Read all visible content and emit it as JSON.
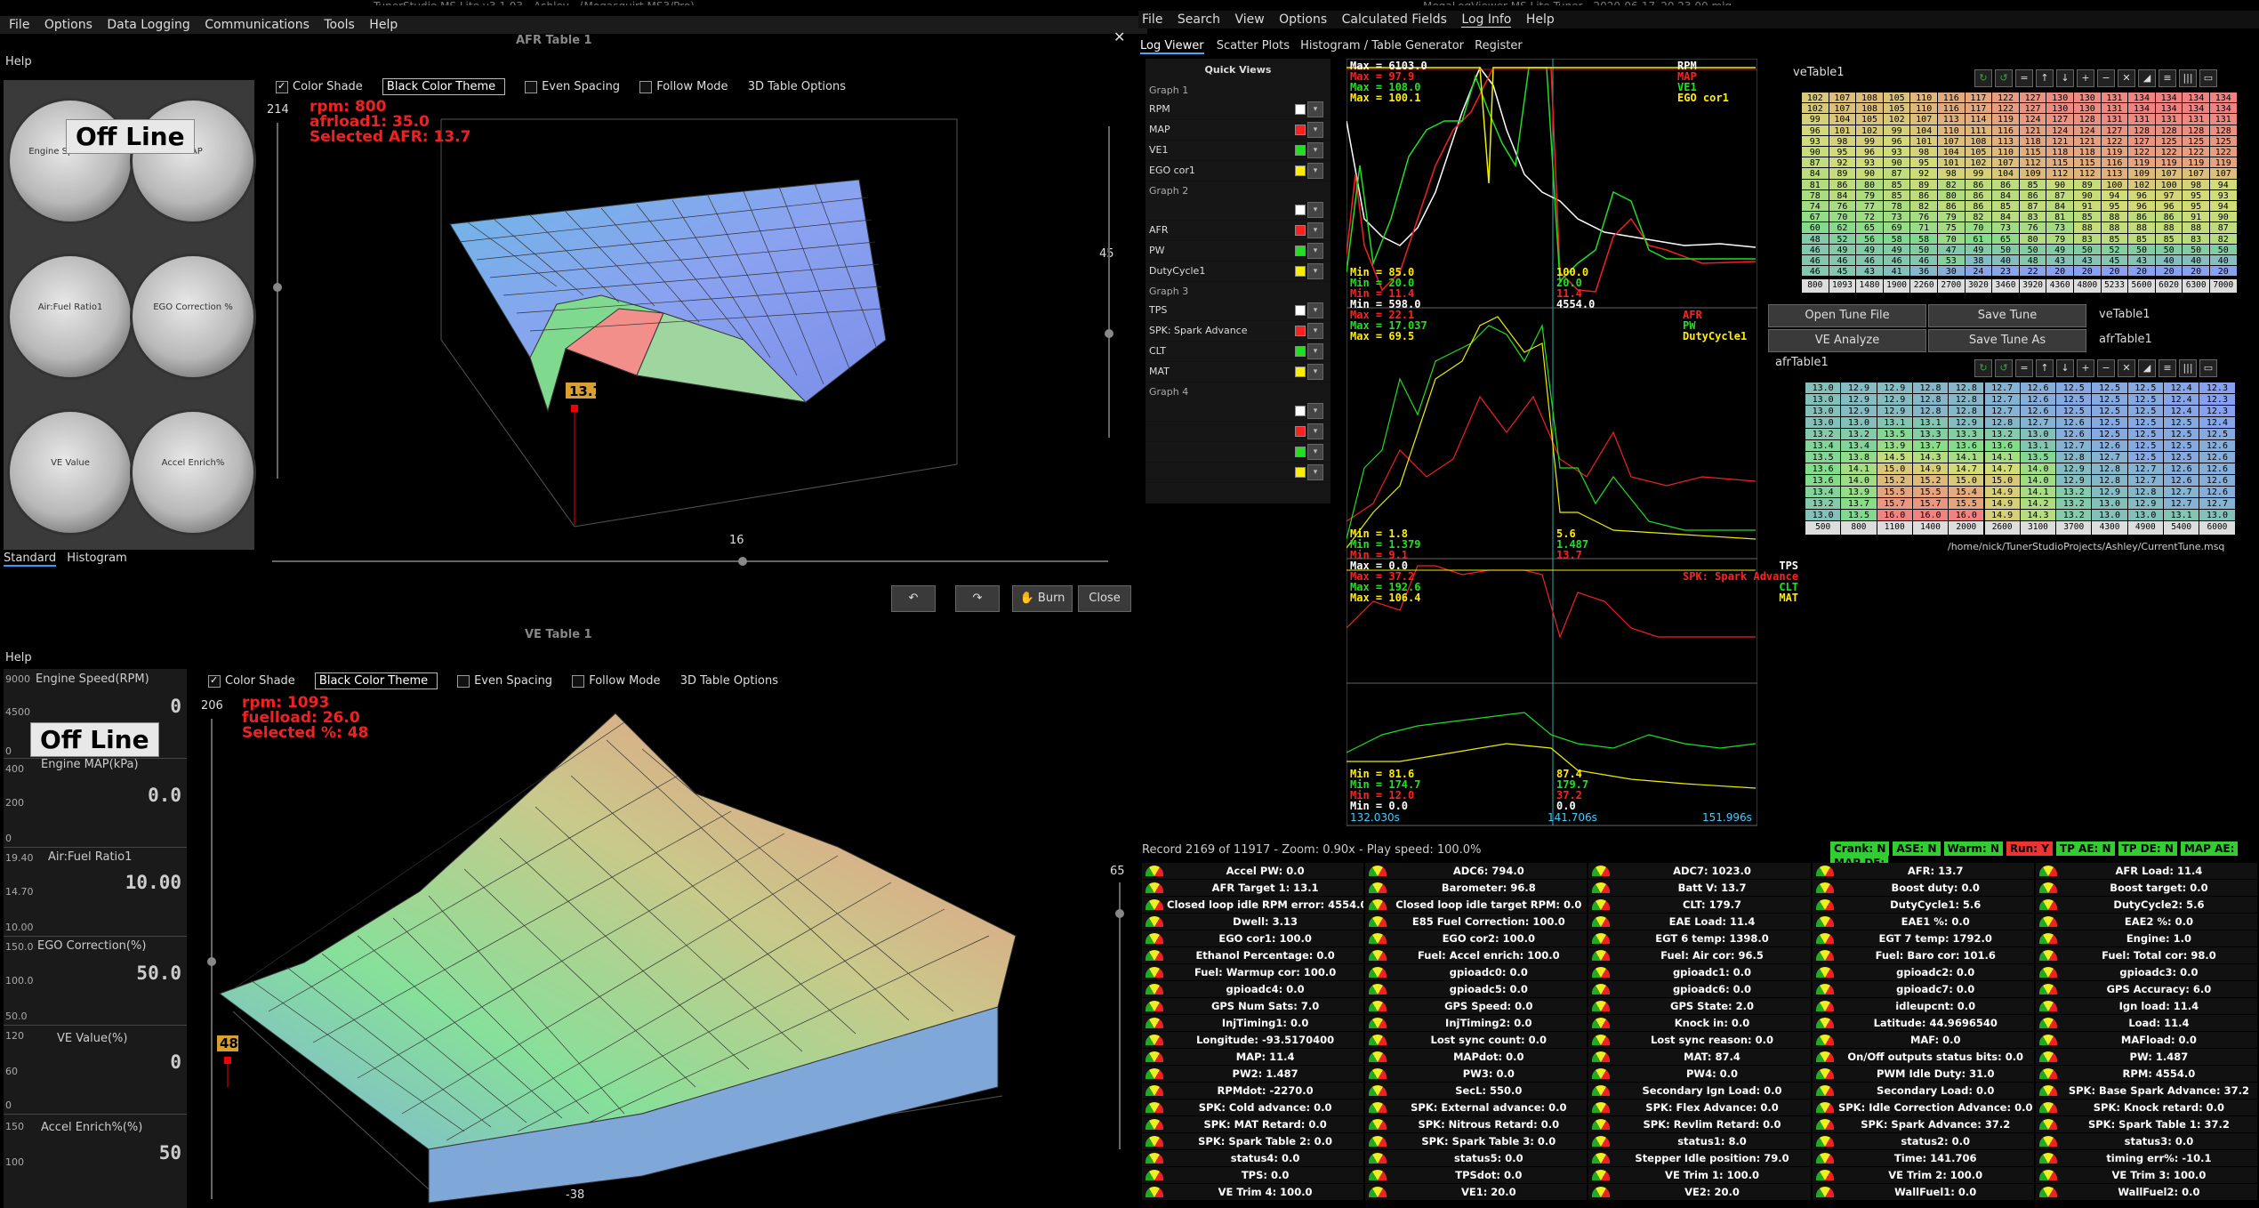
{
  "left_window": {
    "title_partial": "TunerStudio MS Lite v3.1.03 - Ashley - (Megasquirt MS3/Pro)",
    "menu": [
      "File",
      "Options",
      "Data Logging",
      "Communications",
      "Tools",
      "Help"
    ],
    "close_glyph": "✕"
  },
  "afr_window": {
    "help_label": "Help",
    "title": "AFR Table 1",
    "checkbox_color_shade": "Color Shade",
    "theme_value": "Black Color Theme",
    "even_spacing": "Even Spacing",
    "follow_mode": "Follow Mode",
    "options_3d": "3D Table Options",
    "readout": [
      "rpm: 800",
      "afrload1: 35.0",
      "Selected AFR: 13.7"
    ],
    "marker_value": "13.7",
    "left_slider_value": "214",
    "right_slider_value": "45",
    "bottom_slider_value": "16",
    "burn_label": "Burn",
    "close_label": "Close",
    "undo_icon": "undo-icon",
    "redo_icon": "redo-icon"
  },
  "gauges": {
    "offline_label": "Off Line",
    "items": [
      {
        "label": "Engine Speed RPM"
      },
      {
        "label": "MAP"
      },
      {
        "label": "Air:Fuel Ratio1"
      },
      {
        "label": "EGO Correction %"
      },
      {
        "label": "VE Value"
      },
      {
        "label": "Accel Enrich%"
      }
    ],
    "tabs": [
      "Standard",
      "Histogram"
    ]
  },
  "ve_window": {
    "title": "VE Table 1",
    "help_label": "Help",
    "checkbox_color_shade": "Color Shade",
    "theme_value": "Black Color Theme",
    "even_spacing": "Even Spacing",
    "follow_mode": "Follow Mode",
    "options_3d": "3D Table Options",
    "readout": [
      "rpm: 1093",
      "fuelload: 26.0",
      "Selected %: 48"
    ],
    "marker_value": "48",
    "left_slider_value": "206",
    "right_slider_value": "65",
    "bottom_slider_value": "-38",
    "offline_label": "Off Line",
    "side_list": [
      {
        "label": "Engine Speed(RPM)",
        "value": "0",
        "scale_top": "9000",
        "scale_mid": "4500",
        "scale_bot": "0"
      },
      {
        "label": "Engine MAP(kPa)",
        "value": "0.0",
        "scale_top": "400",
        "scale_mid": "200",
        "scale_bot": "0"
      },
      {
        "label": "Air:Fuel Ratio1",
        "value": "10.00",
        "scale_top": "19.40",
        "scale_mid": "14.70",
        "scale_bot": "10.00"
      },
      {
        "label": "EGO Correction(%)",
        "value": "50.0",
        "scale_top": "150.0",
        "scale_mid": "100.0",
        "scale_bot": "50.0"
      },
      {
        "label": "VE Value(%)",
        "value": "0",
        "scale_top": "120",
        "scale_mid": "60",
        "scale_bot": "0"
      },
      {
        "label": "Accel Enrich%(%)",
        "value": "50",
        "scale_top": "150",
        "scale_mid": "100",
        "scale_bot": ""
      }
    ]
  },
  "mlv": {
    "title_partial": "MegaLogViewer MS Lite Tuner - 2020-06-17_20.23.00.mlg",
    "menu": [
      "File",
      "Search",
      "View",
      "Options",
      "Calculated Fields",
      "Log Info",
      "Help"
    ],
    "tabs": [
      "Log Viewer",
      "Scatter Plots",
      "Histogram / Table Generator",
      "Register"
    ],
    "quick_views_title": "Quick Views",
    "graph_groups": [
      {
        "name": "Graph 1",
        "rows": [
          {
            "label": "RPM",
            "color": "#ffffff"
          },
          {
            "label": "MAP",
            "color": "#ff2020"
          },
          {
            "label": "VE1",
            "color": "#20e020"
          },
          {
            "label": "EGO cor1",
            "color": "#ffee00"
          }
        ]
      },
      {
        "name": "Graph 2",
        "rows": [
          {
            "label": "",
            "color": "#ffffff"
          },
          {
            "label": "AFR",
            "color": "#ff2020"
          },
          {
            "label": "PW",
            "color": "#20e020"
          },
          {
            "label": "DutyCycle1",
            "color": "#ffee00"
          }
        ]
      },
      {
        "name": "Graph 3",
        "rows": [
          {
            "label": "TPS",
            "color": "#ffffff"
          },
          {
            "label": "SPK: Spark Advance",
            "color": "#ff2020"
          },
          {
            "label": "CLT",
            "color": "#20e020"
          },
          {
            "label": "MAT",
            "color": "#ffee00"
          }
        ]
      },
      {
        "name": "Graph 4",
        "rows": [
          {
            "label": "",
            "color": "#ffffff"
          },
          {
            "label": "",
            "color": "#ff2020"
          },
          {
            "label": "",
            "color": "#20e020"
          },
          {
            "label": "",
            "color": "#ffee00"
          }
        ]
      }
    ],
    "graph1": {
      "max_lines": [
        {
          "t": "Max = 6103.0",
          "c": "#ffffff"
        },
        {
          "t": "Max = 97.9",
          "c": "#ff2020"
        },
        {
          "t": "Max = 108.0",
          "c": "#20e020"
        },
        {
          "t": "Max = 100.1",
          "c": "#ffee00"
        }
      ],
      "min_lines": [
        {
          "t": "Min = 85.0",
          "c": "#ffee00"
        },
        {
          "t": "Min = 20.0",
          "c": "#20e020"
        },
        {
          "t": "Min = 11.4",
          "c": "#ff2020"
        },
        {
          "t": "Min = 598.0",
          "c": "#ffffff"
        }
      ],
      "legend": [
        {
          "t": "RPM",
          "c": "#ffffff"
        },
        {
          "t": "MAP",
          "c": "#ff2020"
        },
        {
          "t": "VE1",
          "c": "#20e020"
        },
        {
          "t": "EGO cor1",
          "c": "#ffee00"
        }
      ],
      "cursor_vals": [
        {
          "t": "100.0",
          "c": "#ffee00"
        },
        {
          "t": "20.0",
          "c": "#20e020"
        },
        {
          "t": "11.4",
          "c": "#ff2020"
        },
        {
          "t": "4554.0",
          "c": "#ffffff"
        }
      ]
    },
    "graph2": {
      "max_lines": [
        {
          "t": "Max = 22.1",
          "c": "#ff2020"
        },
        {
          "t": "Max = 17.037",
          "c": "#20e020"
        },
        {
          "t": "Max = 69.5",
          "c": "#ffee00"
        }
      ],
      "min_lines": [
        {
          "t": "Min = 1.8",
          "c": "#ffee00"
        },
        {
          "t": "Min = 1.379",
          "c": "#20e020"
        },
        {
          "t": "Min = 9.1",
          "c": "#ff2020"
        }
      ],
      "legend": [
        {
          "t": "AFR",
          "c": "#ff2020"
        },
        {
          "t": "PW",
          "c": "#20e020"
        },
        {
          "t": "DutyCycle1",
          "c": "#ffee00"
        }
      ],
      "cursor_vals": [
        {
          "t": "5.6",
          "c": "#ffee00"
        },
        {
          "t": "1.487",
          "c": "#20e020"
        },
        {
          "t": "13.7",
          "c": "#ff2020"
        }
      ]
    },
    "graph3": {
      "max_lines": [
        {
          "t": "Max = 0.0",
          "c": "#ffffff"
        },
        {
          "t": "Max = 37.2",
          "c": "#ff2020"
        },
        {
          "t": "Max = 192.6",
          "c": "#20e020"
        },
        {
          "t": "Max = 106.4",
          "c": "#ffee00"
        }
      ],
      "min_lines": [
        {
          "t": "Min = 81.6",
          "c": "#ffee00"
        },
        {
          "t": "Min = 174.7",
          "c": "#20e020"
        },
        {
          "t": "Min = 12.0",
          "c": "#ff2020"
        },
        {
          "t": "Min = 0.0",
          "c": "#ffffff"
        }
      ],
      "legend": [
        {
          "t": "TPS",
          "c": "#ffffff"
        },
        {
          "t": "SPK: Spark Advance",
          "c": "#ff2020"
        },
        {
          "t": "CLT",
          "c": "#20e020"
        },
        {
          "t": "MAT",
          "c": "#ffee00"
        }
      ],
      "cursor_vals": [
        {
          "t": "87.4",
          "c": "#ffee00"
        },
        {
          "t": "179.7",
          "c": "#20e020"
        },
        {
          "t": "37.2",
          "c": "#ff2020"
        },
        {
          "t": "0.0",
          "c": "#ffffff"
        }
      ]
    },
    "time_axis": [
      "132.030s",
      "141.706s",
      "151.996s"
    ],
    "status_text": "Record 2169 of 11917 - Zoom: 0.90x - Play speed: 100.0%",
    "indicators": [
      {
        "t": "Crank: N",
        "c": "#3c3"
      },
      {
        "t": "ASE: N",
        "c": "#3c3"
      },
      {
        "t": "Warm: N",
        "c": "#3c3"
      },
      {
        "t": "Run: Y",
        "c": "#e33"
      },
      {
        "t": "TP AE: N",
        "c": "#3c3"
      },
      {
        "t": "TP DE: N",
        "c": "#3c3"
      },
      {
        "t": "MAP AE:",
        "c": "#3c3"
      },
      {
        "t": "MAP DE:",
        "c": "#3c3"
      }
    ]
  },
  "ve_table_panel": {
    "title": "veTable1",
    "rows": [
      [
        "102",
        "107",
        "108",
        "105",
        "110",
        "116",
        "117",
        "122",
        "127",
        "130",
        "130",
        "131",
        "134",
        "134",
        "134",
        "134"
      ],
      [
        "102",
        "107",
        "108",
        "105",
        "110",
        "116",
        "117",
        "122",
        "127",
        "130",
        "130",
        "131",
        "134",
        "134",
        "134",
        "134"
      ],
      [
        "99",
        "104",
        "105",
        "102",
        "107",
        "113",
        "114",
        "119",
        "124",
        "127",
        "128",
        "131",
        "131",
        "131",
        "131",
        "131"
      ],
      [
        "96",
        "101",
        "102",
        "99",
        "104",
        "110",
        "111",
        "116",
        "121",
        "124",
        "124",
        "127",
        "128",
        "128",
        "128",
        "128"
      ],
      [
        "93",
        "98",
        "99",
        "96",
        "101",
        "107",
        "108",
        "113",
        "118",
        "121",
        "121",
        "122",
        "127",
        "125",
        "125",
        "125"
      ],
      [
        "90",
        "95",
        "96",
        "93",
        "98",
        "104",
        "105",
        "110",
        "115",
        "118",
        "118",
        "119",
        "122",
        "122",
        "122",
        "122"
      ],
      [
        "87",
        "92",
        "93",
        "90",
        "95",
        "101",
        "102",
        "107",
        "112",
        "115",
        "115",
        "116",
        "119",
        "119",
        "119",
        "119"
      ],
      [
        "84",
        "89",
        "90",
        "87",
        "92",
        "98",
        "99",
        "104",
        "109",
        "112",
        "112",
        "113",
        "109",
        "107",
        "107",
        "107"
      ],
      [
        "81",
        "86",
        "80",
        "85",
        "89",
        "82",
        "86",
        "86",
        "85",
        "90",
        "89",
        "100",
        "102",
        "100",
        "98",
        "94"
      ],
      [
        "78",
        "84",
        "79",
        "85",
        "86",
        "80",
        "86",
        "84",
        "86",
        "87",
        "90",
        "94",
        "96",
        "97",
        "95",
        "93"
      ],
      [
        "74",
        "76",
        "77",
        "78",
        "82",
        "86",
        "86",
        "85",
        "87",
        "84",
        "91",
        "95",
        "96",
        "96",
        "95",
        "94"
      ],
      [
        "67",
        "70",
        "72",
        "73",
        "76",
        "79",
        "82",
        "84",
        "83",
        "81",
        "85",
        "88",
        "86",
        "86",
        "91",
        "90"
      ],
      [
        "60",
        "62",
        "65",
        "69",
        "71",
        "75",
        "70",
        "73",
        "76",
        "73",
        "88",
        "88",
        "88",
        "88",
        "88",
        "87"
      ],
      [
        "48",
        "52",
        "56",
        "58",
        "58",
        "70",
        "61",
        "65",
        "80",
        "79",
        "83",
        "85",
        "85",
        "85",
        "83",
        "82"
      ],
      [
        "46",
        "49",
        "49",
        "49",
        "50",
        "47",
        "49",
        "50",
        "50",
        "49",
        "50",
        "52",
        "50",
        "50",
        "50",
        "50"
      ],
      [
        "46",
        "46",
        "46",
        "46",
        "46",
        "53",
        "38",
        "40",
        "48",
        "43",
        "43",
        "45",
        "43",
        "40",
        "40",
        "40"
      ],
      [
        "46",
        "45",
        "43",
        "41",
        "36",
        "30",
        "24",
        "23",
        "22",
        "20",
        "20",
        "20",
        "20",
        "20",
        "20",
        "20"
      ]
    ],
    "x_axis": [
      "800",
      "1093",
      "1480",
      "1900",
      "2260",
      "2700",
      "3020",
      "3460",
      "3920",
      "4360",
      "4800",
      "5233",
      "5600",
      "6020",
      "6300",
      "7000"
    ],
    "buttons": {
      "open_tune": "Open Tune File",
      "save_tune": "Save Tune",
      "ve_analyze": "VE Analyze",
      "save_as": "Save Tune As"
    },
    "side_tabs": [
      "veTable1",
      "afrTable1"
    ]
  },
  "afr_table_panel": {
    "title": "afrTable1",
    "rows": [
      [
        "13.0",
        "12.9",
        "12.9",
        "12.8",
        "12.8",
        "12.7",
        "12.6",
        "12.5",
        "12.5",
        "12.5",
        "12.4",
        "12.3"
      ],
      [
        "13.0",
        "12.9",
        "12.9",
        "12.8",
        "12.8",
        "12.7",
        "12.6",
        "12.5",
        "12.5",
        "12.5",
        "12.4",
        "12.3"
      ],
      [
        "13.0",
        "12.9",
        "12.9",
        "12.8",
        "12.8",
        "12.7",
        "12.6",
        "12.5",
        "12.5",
        "12.5",
        "12.4",
        "12.3"
      ],
      [
        "13.0",
        "13.0",
        "13.1",
        "13.1",
        "12.9",
        "12.8",
        "12.7",
        "12.6",
        "12.5",
        "12.5",
        "12.5",
        "12.4"
      ],
      [
        "13.2",
        "13.2",
        "13.5",
        "13.3",
        "13.3",
        "13.2",
        "13.0",
        "12.6",
        "12.5",
        "12.5",
        "12.5",
        "12.5"
      ],
      [
        "13.4",
        "13.4",
        "13.9",
        "13.7",
        "13.6",
        "13.6",
        "13.1",
        "12.7",
        "12.6",
        "12.5",
        "12.5",
        "12.6"
      ],
      [
        "13.5",
        "13.8",
        "14.5",
        "14.3",
        "14.1",
        "14.1",
        "13.5",
        "12.8",
        "12.7",
        "12.5",
        "12.5",
        "12.6"
      ],
      [
        "13.6",
        "14.1",
        "15.0",
        "14.9",
        "14.7",
        "14.7",
        "14.0",
        "12.9",
        "12.8",
        "12.7",
        "12.6",
        "12.6"
      ],
      [
        "13.6",
        "14.0",
        "15.2",
        "15.2",
        "15.0",
        "15.0",
        "14.0",
        "12.9",
        "12.8",
        "12.7",
        "12.6",
        "12.6"
      ],
      [
        "13.4",
        "13.9",
        "15.5",
        "15.5",
        "15.4",
        "14.9",
        "14.1",
        "13.2",
        "12.9",
        "12.8",
        "12.7",
        "12.6"
      ],
      [
        "13.2",
        "13.7",
        "15.7",
        "15.7",
        "15.5",
        "14.9",
        "14.2",
        "13.2",
        "13.0",
        "12.9",
        "12.7",
        "12.7"
      ],
      [
        "13.0",
        "13.5",
        "16.0",
        "16.0",
        "16.0",
        "14.9",
        "14.3",
        "13.2",
        "13.0",
        "13.0",
        "13.1",
        "13.0"
      ]
    ],
    "x_axis": [
      "500",
      "800",
      "1100",
      "1400",
      "2000",
      "2600",
      "3100",
      "3700",
      "4300",
      "4900",
      "5400",
      "6000"
    ],
    "tune_path": "/home/nick/TunerStudioProjects/Ashley/CurrentTune.msq"
  },
  "dashboard": [
    [
      "Accel PW: 0.0",
      "ADC6: 794.0",
      "ADC7: 1023.0",
      "AFR: 13.7",
      "AFR Load: 11.4"
    ],
    [
      "AFR Target 1: 13.1",
      "Barometer: 96.8",
      "Batt V: 13.7",
      "Boost duty: 0.0",
      "Boost target: 0.0"
    ],
    [
      "Closed loop idle RPM error: 4554.0",
      "Closed loop idle target RPM: 0.0",
      "CLT: 179.7",
      "DutyCycle1: 5.6",
      "DutyCycle2: 5.6"
    ],
    [
      "Dwell: 3.13",
      "E85 Fuel Correction: 100.0",
      "EAE Load: 11.4",
      "EAE1 %: 0.0",
      "EAE2 %: 0.0"
    ],
    [
      "EGO cor1: 100.0",
      "EGO cor2: 100.0",
      "EGT 6 temp: 1398.0",
      "EGT 7 temp: 1792.0",
      "Engine: 1.0"
    ],
    [
      "Ethanol Percentage: 0.0",
      "Fuel: Accel enrich: 100.0",
      "Fuel: Air cor: 96.5",
      "Fuel: Baro cor: 101.6",
      "Fuel: Total cor: 98.0"
    ],
    [
      "Fuel: Warmup cor: 100.0",
      "gpioadc0: 0.0",
      "gpioadc1: 0.0",
      "gpioadc2: 0.0",
      "gpioadc3: 0.0"
    ],
    [
      "gpioadc4: 0.0",
      "gpioadc5: 0.0",
      "gpioadc6: 0.0",
      "gpioadc7: 0.0",
      "GPS Accuracy: 6.0"
    ],
    [
      "GPS Num Sats: 7.0",
      "GPS Speed: 0.0",
      "GPS State: 2.0",
      "idleupcnt: 0.0",
      "Ign load: 11.4"
    ],
    [
      "InjTiming1: 0.0",
      "InjTiming2: 0.0",
      "Knock in: 0.0",
      "Latitude: 44.9696540",
      "Load: 11.4"
    ],
    [
      "Longitude: -93.5170400",
      "Lost sync count: 0.0",
      "Lost sync reason: 0.0",
      "MAF: 0.0",
      "MAFload: 0.0"
    ],
    [
      "MAP: 11.4",
      "MAPdot: 0.0",
      "MAT: 87.4",
      "On/Off outputs status bits: 0.0",
      "PW: 1.487"
    ],
    [
      "PW2: 1.487",
      "PW3: 0.0",
      "PW4: 0.0",
      "PWM Idle Duty: 31.0",
      "RPM: 4554.0"
    ],
    [
      "RPMdot: -2270.0",
      "SecL: 550.0",
      "Secondary Ign Load: 0.0",
      "Secondary Load: 0.0",
      "SPK: Base Spark Advance: 37.2"
    ],
    [
      "SPK: Cold advance: 0.0",
      "SPK: External advance: 0.0",
      "SPK: Flex Advance: 0.0",
      "SPK: Idle Correction Advance: 0.0",
      "SPK: Knock retard: 0.0"
    ],
    [
      "SPK: MAT Retard: 0.0",
      "SPK: Nitrous Retard: 0.0",
      "SPK: Revlim Retard: 0.0",
      "SPK: Spark Advance: 37.2",
      "SPK: Spark Table 1: 37.2"
    ],
    [
      "SPK: Spark Table 2: 0.0",
      "SPK: Spark Table 3: 0.0",
      "status1: 8.0",
      "status2: 0.0",
      "status3: 0.0"
    ],
    [
      "status4: 0.0",
      "status5: 0.0",
      "Stepper Idle position: 79.0",
      "Time: 141.706",
      "timing err%: -10.1"
    ],
    [
      "TPS: 0.0",
      "TPSdot: 0.0",
      "VE Trim 1: 100.0",
      "VE Trim 2: 100.0",
      "VE Trim 3: 100.0"
    ],
    [
      "VE Trim 4: 100.0",
      "VE1: 20.0",
      "VE2: 20.0",
      "WallFuel1: 0.0",
      "WallFuel2: 0.0"
    ]
  ]
}
